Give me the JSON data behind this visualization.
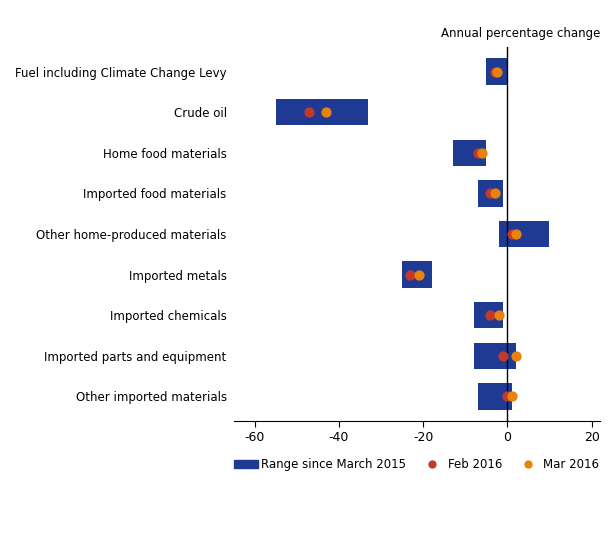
{
  "categories": [
    "Fuel including Climate Change Levy",
    "Crude oil",
    "Home food materials",
    "Imported food materials",
    "Other home-produced materials",
    "Imported metals",
    "Imported chemicals",
    "Imported parts and equipment",
    "Other imported materials"
  ],
  "range_min": [
    -5,
    -55,
    -13,
    -7,
    -2,
    -25,
    -8,
    -8,
    -7
  ],
  "range_max": [
    0,
    -33,
    -5,
    -1,
    10,
    -18,
    -1,
    2,
    1
  ],
  "feb_2016": [
    -3,
    -47,
    -7,
    -4,
    1,
    -23,
    -4,
    -1,
    0
  ],
  "mar_2016": [
    -2.5,
    -43,
    -6,
    -3,
    2,
    -21,
    -2,
    2,
    1
  ],
  "bar_color": "#1F3A93",
  "feb_color": "#C0392B",
  "mar_color": "#E8820C",
  "title": "Annual percentage change",
  "xlim": [
    -65,
    22
  ],
  "xticks": [
    -60,
    -40,
    -20,
    0,
    20
  ],
  "legend_labels": [
    "Range since March 2015",
    "Feb 2016",
    "Mar 2016"
  ],
  "bar_height": 0.65,
  "figsize": [
    6.15,
    5.41
  ],
  "dpi": 100
}
